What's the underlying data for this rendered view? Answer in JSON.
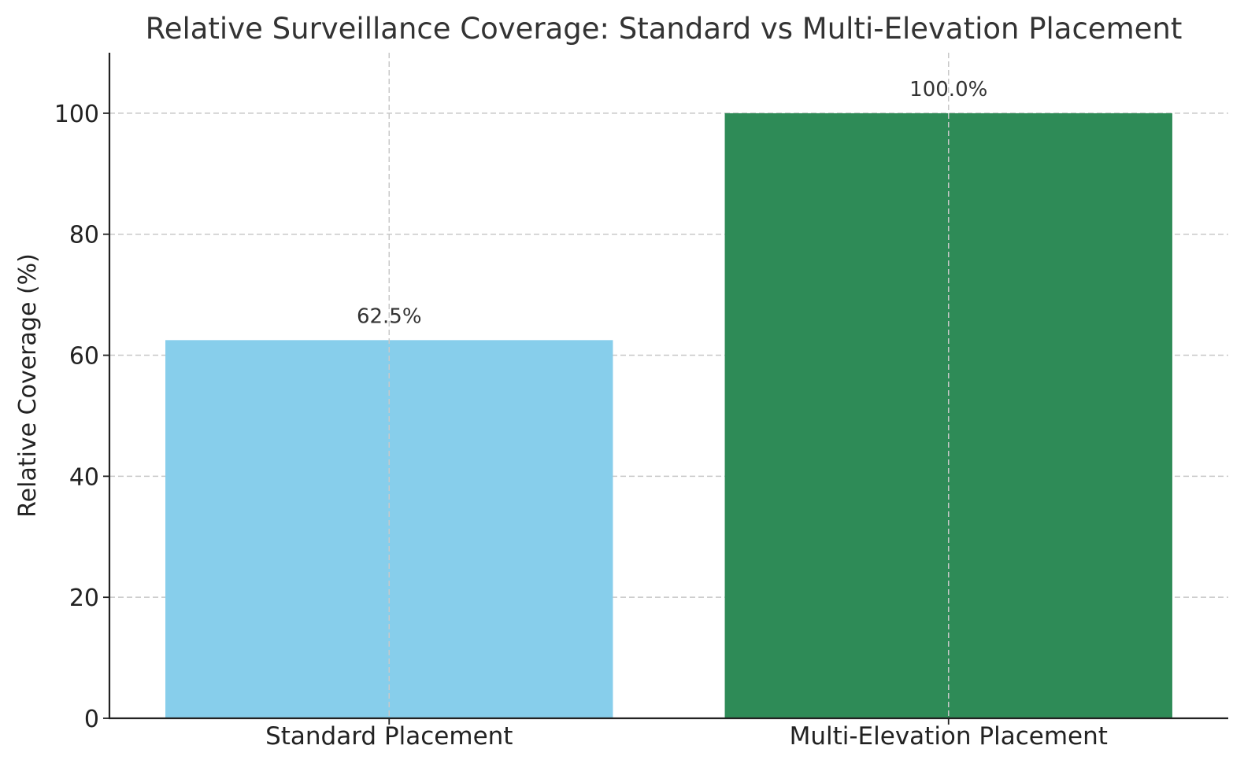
{
  "chart_data": {
    "type": "bar",
    "title": "Relative Surveillance Coverage: Standard vs Multi-Elevation Placement",
    "xlabel": "",
    "ylabel": "Relative Coverage (%)",
    "categories": [
      "Standard Placement",
      "Multi-Elevation Placement"
    ],
    "values": [
      62.5,
      100.0
    ],
    "data_labels": [
      "62.5%",
      "100.0%"
    ],
    "colors": [
      "#87CEEB",
      "#2E8B57"
    ],
    "ylim": [
      0,
      110
    ],
    "yticks": [
      0,
      20,
      40,
      60,
      80,
      100
    ],
    "grid": true
  }
}
